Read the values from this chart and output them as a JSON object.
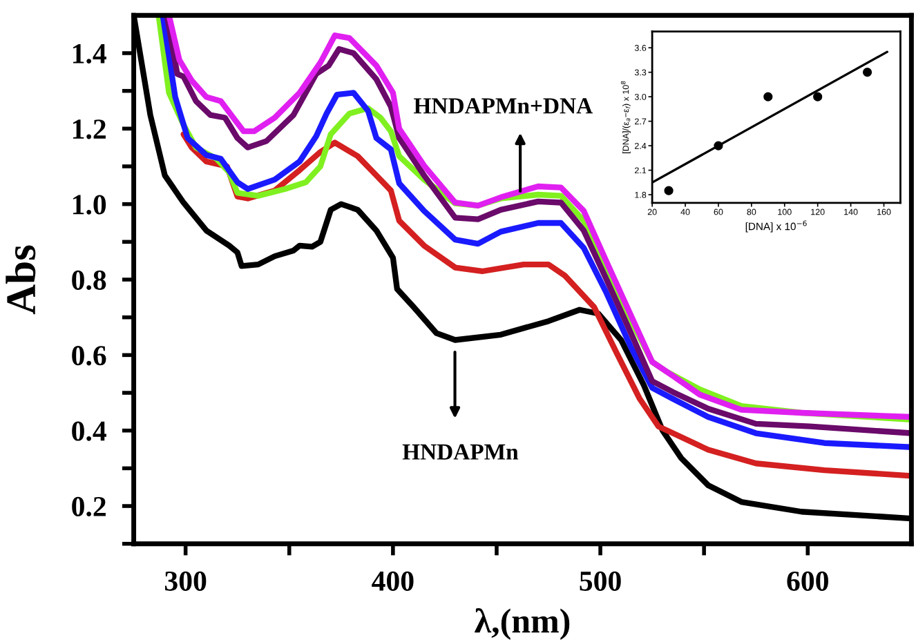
{
  "chart_data": [
    {
      "type": "line",
      "xlabel": "λ,(nm)",
      "ylabel": "Abs",
      "xlim": [
        275,
        650
      ],
      "ylim": [
        0.1,
        1.5
      ],
      "xticks": [
        300,
        {
          "value": 350,
          "label": null
        },
        400,
        {
          "value": 450,
          "label": null
        },
        500,
        {
          "value": 550,
          "label": null
        },
        600
      ],
      "yticks": [
        {
          "value": 0.1,
          "label": null
        },
        0.2,
        {
          "value": 0.3,
          "label": null
        },
        0.4,
        {
          "value": 0.5,
          "label": null
        },
        0.6,
        {
          "value": 0.7,
          "label": null
        },
        0.8,
        {
          "value": 0.9,
          "label": null
        },
        {
          "value": 1.0,
          "label": "1.0"
        },
        {
          "value": 1.1,
          "label": null
        },
        1.2,
        {
          "value": 1.3,
          "label": null
        },
        1.4
      ],
      "grid": false,
      "line_style": "solid",
      "marker": "none",
      "annotations": [
        "HNDAPMn+DNA",
        "HNDAPMn"
      ],
      "series": [
        {
          "color": "#000000",
          "x": [
            275,
            283,
            290,
            299,
            310,
            321,
            325,
            327,
            335,
            343,
            352,
            355,
            361,
            365,
            370,
            375,
            383,
            392,
            400,
            402,
            410,
            421,
            430,
            452,
            475,
            490,
            499,
            510,
            521,
            530,
            539,
            552,
            568,
            597,
            650
          ],
          "values": [
            1.5,
            1.236,
            1.076,
            1.004,
            0.93,
            0.89,
            0.872,
            0.836,
            0.84,
            0.862,
            0.877,
            0.89,
            0.887,
            0.9,
            0.985,
            1.0,
            0.985,
            0.93,
            0.858,
            0.775,
            0.727,
            0.658,
            0.64,
            0.654,
            0.69,
            0.72,
            0.71,
            0.64,
            0.52,
            0.4,
            0.327,
            0.255,
            0.211,
            0.185,
            0.167
          ]
        },
        {
          "color": "#d42020",
          "x": [
            299,
            303,
            310,
            320,
            325,
            330,
            343,
            355,
            365,
            372,
            383,
            392,
            399,
            403,
            415,
            430,
            443,
            463,
            475,
            483,
            497,
            508,
            519,
            528,
            535,
            552,
            575,
            608,
            650
          ],
          "values": [
            1.185,
            1.15,
            1.113,
            1.1,
            1.02,
            1.015,
            1.036,
            1.09,
            1.138,
            1.163,
            1.127,
            1.076,
            1.036,
            0.956,
            0.89,
            0.832,
            0.822,
            0.84,
            0.84,
            0.81,
            0.727,
            0.604,
            0.484,
            0.411,
            0.393,
            0.349,
            0.313,
            0.295,
            0.28
          ]
        },
        {
          "color": "#80f020",
          "x": [
            287,
            292,
            299,
            305,
            315,
            321,
            325,
            335,
            348,
            358,
            365,
            370,
            379,
            388,
            394,
            399,
            403,
            415,
            430,
            441,
            452,
            470,
            481,
            492,
            503,
            515,
            525,
            532,
            548,
            568,
            597,
            650
          ],
          "values": [
            1.5,
            1.295,
            1.21,
            1.15,
            1.12,
            1.084,
            1.03,
            1.022,
            1.04,
            1.058,
            1.1,
            1.185,
            1.24,
            1.254,
            1.229,
            1.193,
            1.127,
            1.065,
            1.002,
            0.996,
            1.015,
            1.025,
            1.022,
            0.956,
            0.822,
            0.69,
            0.582,
            0.556,
            0.509,
            0.465,
            0.447,
            0.429
          ]
        },
        {
          "color": "#1a1aff",
          "x": [
            289,
            295,
            301,
            310,
            317,
            325,
            330,
            343,
            355,
            363,
            368,
            373,
            381,
            388,
            392,
            399,
            403,
            415,
            430,
            441,
            452,
            470,
            481,
            492,
            503,
            515,
            525,
            535,
            552,
            575,
            608,
            650
          ],
          "values": [
            1.5,
            1.284,
            1.175,
            1.13,
            1.12,
            1.058,
            1.04,
            1.065,
            1.113,
            1.18,
            1.24,
            1.29,
            1.295,
            1.247,
            1.175,
            1.145,
            1.055,
            0.982,
            0.906,
            0.895,
            0.927,
            0.95,
            0.95,
            0.884,
            0.764,
            0.618,
            0.513,
            0.484,
            0.436,
            0.393,
            0.367,
            0.356
          ]
        },
        {
          "color": "#6a0a6a",
          "x": [
            291,
            296,
            299,
            305,
            312,
            319,
            325,
            330,
            339,
            352,
            363,
            369,
            374,
            381,
            392,
            399,
            403,
            415,
            430,
            441,
            452,
            470,
            481,
            492,
            503,
            515,
            525,
            535,
            552,
            575,
            601,
            650
          ],
          "values": [
            1.5,
            1.345,
            1.338,
            1.273,
            1.236,
            1.229,
            1.175,
            1.15,
            1.167,
            1.236,
            1.345,
            1.367,
            1.411,
            1.4,
            1.331,
            1.258,
            1.175,
            1.076,
            0.964,
            0.96,
            0.985,
            1.007,
            1.004,
            0.93,
            0.8,
            0.655,
            0.531,
            0.502,
            0.458,
            0.418,
            0.411,
            0.393
          ]
        },
        {
          "color": "#e020f0",
          "x": [
            292,
            297,
            303,
            310,
            317,
            323,
            328,
            333,
            343,
            355,
            365,
            372,
            379,
            392,
            400,
            403,
            415,
            430,
            441,
            452,
            470,
            481,
            492,
            503,
            515,
            525,
            535,
            548,
            568,
            597,
            650
          ],
          "values": [
            1.5,
            1.382,
            1.327,
            1.284,
            1.273,
            1.229,
            1.193,
            1.193,
            1.229,
            1.295,
            1.375,
            1.447,
            1.44,
            1.367,
            1.295,
            1.2,
            1.102,
            1.004,
            0.996,
            1.018,
            1.047,
            1.044,
            0.982,
            0.847,
            0.702,
            0.582,
            0.545,
            0.495,
            0.455,
            0.447,
            0.436
          ]
        }
      ]
    },
    {
      "type": "scatter",
      "xlabel": "[DNA] x 10$^{−6}$",
      "ylabel": "[DNA]/(ε$_{a}$−ε$_{f}$) x 10$^{8}$",
      "xlim": [
        20,
        170
      ],
      "ylim": [
        1.7,
        3.8
      ],
      "xticks": [
        20,
        40,
        60,
        80,
        100,
        120,
        140,
        160
      ],
      "yticks": [
        1.8,
        2.1,
        2.4,
        2.7,
        {
          "value": 3.0,
          "label": "3.0"
        },
        3.3,
        3.6
      ],
      "grid": false,
      "series": [
        {
          "color": "#000000",
          "marker": "circle",
          "x": [
            30,
            60,
            90,
            120,
            150
          ],
          "values": [
            1.85,
            2.4,
            3.0,
            3.0,
            3.3
          ]
        },
        {
          "type": "line",
          "color": "#000000",
          "x": [
            20,
            162
          ],
          "values": [
            1.95,
            3.55
          ]
        }
      ]
    }
  ]
}
